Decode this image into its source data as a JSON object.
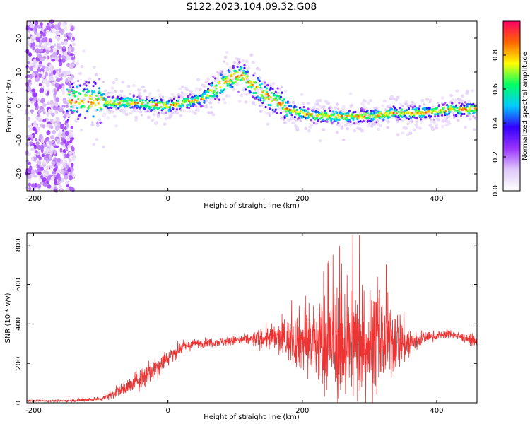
{
  "title": "S122.2023.104.09.32.G08",
  "colors": {
    "line": "#ee3333",
    "axis": "#000000"
  },
  "chart_data": [
    {
      "type": "heatmap",
      "xlabel": "Height of straight line (km)",
      "ylabel": "Frequency (Hz)",
      "xlim": [
        -210,
        460
      ],
      "ylim": [
        -25,
        25
      ],
      "x_ticks": [
        -200,
        0,
        200,
        400
      ],
      "y_ticks": [
        -20,
        -10,
        0,
        10,
        20
      ],
      "colorbar": {
        "label": "Normalized spectral amplitude",
        "range": [
          0,
          1
        ],
        "ticks": [
          "0.0",
          "0.2",
          "0.4",
          "0.6",
          "0.8"
        ],
        "tick_values": [
          0,
          0.2,
          0.4,
          0.6,
          0.8
        ],
        "colormap": [
          "#ffffff",
          "#e0c8f8",
          "#9933ff",
          "#3300ff",
          "#00ccff",
          "#00ff66",
          "#ffff00",
          "#ff6600",
          "#ff0066"
        ]
      },
      "ridge": {
        "x": [
          -150,
          -100,
          -50,
          0,
          50,
          90,
          110,
          140,
          180,
          220,
          260,
          300,
          340,
          380,
          420,
          460
        ],
        "frequency": [
          2,
          1,
          1,
          0,
          2,
          8,
          9,
          4,
          -1,
          -3,
          -3,
          -3,
          -2,
          -2,
          -1,
          -1
        ]
      }
    },
    {
      "type": "line",
      "xlabel": "Height of straight line (km)",
      "ylabel": "SNR (10 * v/v)",
      "xlim": [
        -210,
        460
      ],
      "ylim": [
        0,
        860
      ],
      "x_ticks": [
        -200,
        0,
        200,
        400
      ],
      "y_ticks": [
        0,
        200,
        400,
        600,
        800
      ],
      "envelope": {
        "x": [
          -210,
          -150,
          -100,
          -60,
          -30,
          0,
          20,
          40,
          80,
          120,
          150,
          180,
          200,
          220,
          240,
          260,
          280,
          300,
          320,
          340,
          360,
          380,
          400,
          420,
          440,
          460
        ],
        "mean": [
          10,
          10,
          20,
          80,
          150,
          230,
          280,
          300,
          310,
          320,
          330,
          320,
          320,
          300,
          290,
          300,
          310,
          300,
          310,
          320,
          300,
          330,
          340,
          350,
          330,
          310
        ],
        "spread": [
          3,
          4,
          8,
          25,
          45,
          30,
          20,
          15,
          15,
          20,
          40,
          70,
          110,
          150,
          180,
          200,
          200,
          180,
          150,
          110,
          60,
          20,
          15,
          15,
          15,
          20
        ]
      },
      "peaks": [
        {
          "x": 275,
          "y": 850
        },
        {
          "x": 285,
          "y": 850
        },
        {
          "x": 238,
          "y": 710
        },
        {
          "x": 325,
          "y": 700
        }
      ]
    }
  ]
}
